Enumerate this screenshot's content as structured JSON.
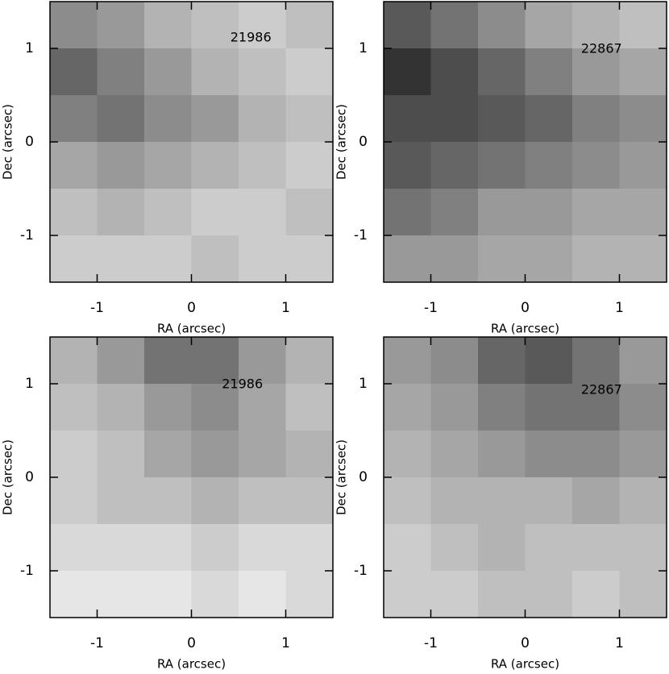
{
  "chart_data": [
    {
      "type": "heatmap",
      "annotation": "21986",
      "xlabel": "RA (arcsec)",
      "ylabel": "Dec (arcsec)",
      "xlim": [
        -1.5,
        1.5
      ],
      "ylim": [
        -1.5,
        1.5
      ],
      "xticks": [
        -1,
        0,
        1
      ],
      "yticks": [
        -1,
        0,
        1
      ],
      "z": [
        [
          0.55,
          0.6,
          0.7,
          0.75,
          0.8,
          0.75
        ],
        [
          0.4,
          0.5,
          0.6,
          0.7,
          0.75,
          0.8
        ],
        [
          0.5,
          0.45,
          0.55,
          0.6,
          0.7,
          0.75
        ],
        [
          0.65,
          0.6,
          0.65,
          0.7,
          0.75,
          0.8
        ],
        [
          0.75,
          0.7,
          0.75,
          0.8,
          0.8,
          0.75
        ],
        [
          0.8,
          0.8,
          0.8,
          0.75,
          0.8,
          0.8
        ]
      ]
    },
    {
      "type": "heatmap",
      "annotation": "22867",
      "xlabel": "RA (arcsec)",
      "ylabel": "Dec (arcsec)",
      "xlim": [
        -1.5,
        1.5
      ],
      "ylim": [
        -1.5,
        1.5
      ],
      "xticks": [
        -1,
        0,
        1
      ],
      "yticks": [
        -1,
        0,
        1
      ],
      "z": [
        [
          0.35,
          0.45,
          0.55,
          0.65,
          0.7,
          0.75
        ],
        [
          0.2,
          0.3,
          0.4,
          0.5,
          0.6,
          0.65
        ],
        [
          0.3,
          0.3,
          0.35,
          0.4,
          0.5,
          0.55
        ],
        [
          0.35,
          0.4,
          0.45,
          0.5,
          0.55,
          0.6
        ],
        [
          0.45,
          0.5,
          0.6,
          0.6,
          0.65,
          0.65
        ],
        [
          0.6,
          0.6,
          0.65,
          0.65,
          0.7,
          0.7
        ]
      ]
    },
    {
      "type": "heatmap",
      "annotation": "21986",
      "xlabel": "RA (arcsec)",
      "ylabel": "Dec (arcsec)",
      "xlim": [
        -1.5,
        1.5
      ],
      "ylim": [
        -1.5,
        1.5
      ],
      "xticks": [
        -1,
        0,
        1
      ],
      "yticks": [
        -1,
        0,
        1
      ],
      "z": [
        [
          0.7,
          0.6,
          0.45,
          0.45,
          0.6,
          0.7
        ],
        [
          0.75,
          0.7,
          0.6,
          0.55,
          0.65,
          0.75
        ],
        [
          0.8,
          0.75,
          0.65,
          0.6,
          0.65,
          0.7
        ],
        [
          0.8,
          0.75,
          0.75,
          0.7,
          0.75,
          0.75
        ],
        [
          0.85,
          0.85,
          0.85,
          0.8,
          0.85,
          0.85
        ],
        [
          0.9,
          0.9,
          0.9,
          0.85,
          0.9,
          0.85
        ]
      ]
    },
    {
      "type": "heatmap",
      "annotation": "22867",
      "xlabel": "RA (arcsec)",
      "ylabel": "Dec (arcsec)",
      "xlim": [
        -1.5,
        1.5
      ],
      "ylim": [
        -1.5,
        1.5
      ],
      "xticks": [
        -1,
        0,
        1
      ],
      "yticks": [
        -1,
        0,
        1
      ],
      "z": [
        [
          0.6,
          0.55,
          0.4,
          0.35,
          0.45,
          0.6
        ],
        [
          0.65,
          0.6,
          0.5,
          0.45,
          0.45,
          0.55
        ],
        [
          0.7,
          0.65,
          0.6,
          0.55,
          0.55,
          0.6
        ],
        [
          0.75,
          0.7,
          0.7,
          0.7,
          0.65,
          0.7
        ],
        [
          0.8,
          0.75,
          0.7,
          0.75,
          0.75,
          0.75
        ],
        [
          0.8,
          0.8,
          0.75,
          0.75,
          0.8,
          0.75
        ]
      ]
    }
  ]
}
